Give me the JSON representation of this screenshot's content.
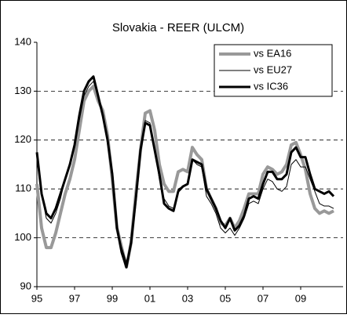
{
  "chart_data": {
    "type": "line",
    "title": "Slovakia - REER (ULCM)",
    "x": [
      1995,
      1995.25,
      1995.5,
      1995.75,
      1996,
      1996.25,
      1996.5,
      1996.75,
      1997,
      1997.25,
      1997.5,
      1997.75,
      1998,
      1998.25,
      1998.5,
      1998.75,
      1999,
      1999.25,
      1999.5,
      1999.75,
      2000,
      2000.25,
      2000.5,
      2000.75,
      2001,
      2001.25,
      2001.5,
      2001.75,
      2002,
      2002.25,
      2002.5,
      2002.75,
      2003,
      2003.25,
      2003.5,
      2003.75,
      2004,
      2004.25,
      2004.5,
      2004.75,
      2005,
      2005.25,
      2005.5,
      2005.75,
      2006,
      2006.25,
      2006.5,
      2006.75,
      2007,
      2007.25,
      2007.5,
      2007.75,
      2008,
      2008.25,
      2008.5,
      2008.75,
      2009,
      2009.25,
      2009.5,
      2009.75,
      2010,
      2010.25,
      2010.5,
      2010.75
    ],
    "series": [
      {
        "name": "vs EA16",
        "color": "#999999",
        "width": 4,
        "values": [
          111,
          102,
          98,
          98,
          101,
          105,
          109,
          112,
          116,
          122,
          128,
          130,
          131,
          128,
          126,
          121,
          112,
          102,
          98,
          94,
          99,
          109,
          118,
          125.5,
          126,
          122,
          115,
          111,
          109.5,
          109.5,
          113.5,
          114,
          113.5,
          118.5,
          117,
          116,
          110,
          108,
          106,
          103,
          102.5,
          104,
          102,
          103.5,
          106,
          109,
          109,
          109,
          113,
          114.5,
          114,
          113,
          113.5,
          115,
          119,
          119.5,
          117,
          114,
          109,
          106,
          105,
          105.5,
          105,
          105.5
        ]
      },
      {
        "name": "vs EU27",
        "color": "#000000",
        "width": 1,
        "values": [
          116,
          109,
          104,
          103,
          105,
          108,
          112,
          115,
          119,
          124,
          129,
          131,
          132,
          129,
          125,
          120,
          112,
          102,
          98,
          95,
          99,
          108,
          118,
          124,
          123.5,
          118,
          112,
          108,
          106.5,
          106,
          110,
          110.5,
          111,
          116,
          115,
          114.5,
          108.5,
          107,
          105,
          102,
          101,
          102,
          100.5,
          102,
          104,
          107,
          107.5,
          107,
          110,
          112,
          111.5,
          110,
          109.5,
          110.5,
          115,
          116,
          114.5,
          114.5,
          112,
          109.5,
          107,
          106.5,
          106.5,
          106
        ]
      },
      {
        "name": "vs IC36",
        "color": "#000000",
        "width": 3,
        "values": [
          117.5,
          109,
          105,
          104,
          106,
          109,
          112,
          115,
          119,
          125,
          130,
          132,
          133,
          129,
          125,
          120,
          113,
          102,
          97,
          94,
          99,
          108,
          118,
          123.5,
          123,
          118,
          113,
          107,
          106,
          105.5,
          109.5,
          110.5,
          111,
          116,
          115.5,
          115,
          110,
          108,
          106,
          103.5,
          102,
          104,
          101.5,
          102.5,
          104.5,
          108,
          108.5,
          108,
          111,
          113.5,
          113.5,
          112,
          112,
          113,
          117.5,
          118.5,
          116.5,
          116.5,
          113,
          110,
          109.5,
          109,
          109.5,
          108.5
        ]
      }
    ],
    "xlim": [
      1995,
      2011.25
    ],
    "xticks": [
      {
        "value": 1995,
        "label": "95"
      },
      {
        "value": 1997,
        "label": "97"
      },
      {
        "value": 1999,
        "label": "99"
      },
      {
        "value": 2001,
        "label": "01"
      },
      {
        "value": 2003,
        "label": "03"
      },
      {
        "value": 2005,
        "label": "05"
      },
      {
        "value": 2007,
        "label": "07"
      },
      {
        "value": 2009,
        "label": "09"
      }
    ],
    "ylim": [
      90,
      140
    ],
    "yticks": [
      90,
      100,
      110,
      120,
      130,
      140
    ],
    "grid": [
      100,
      110,
      120,
      130
    ],
    "legend": "top-right"
  }
}
